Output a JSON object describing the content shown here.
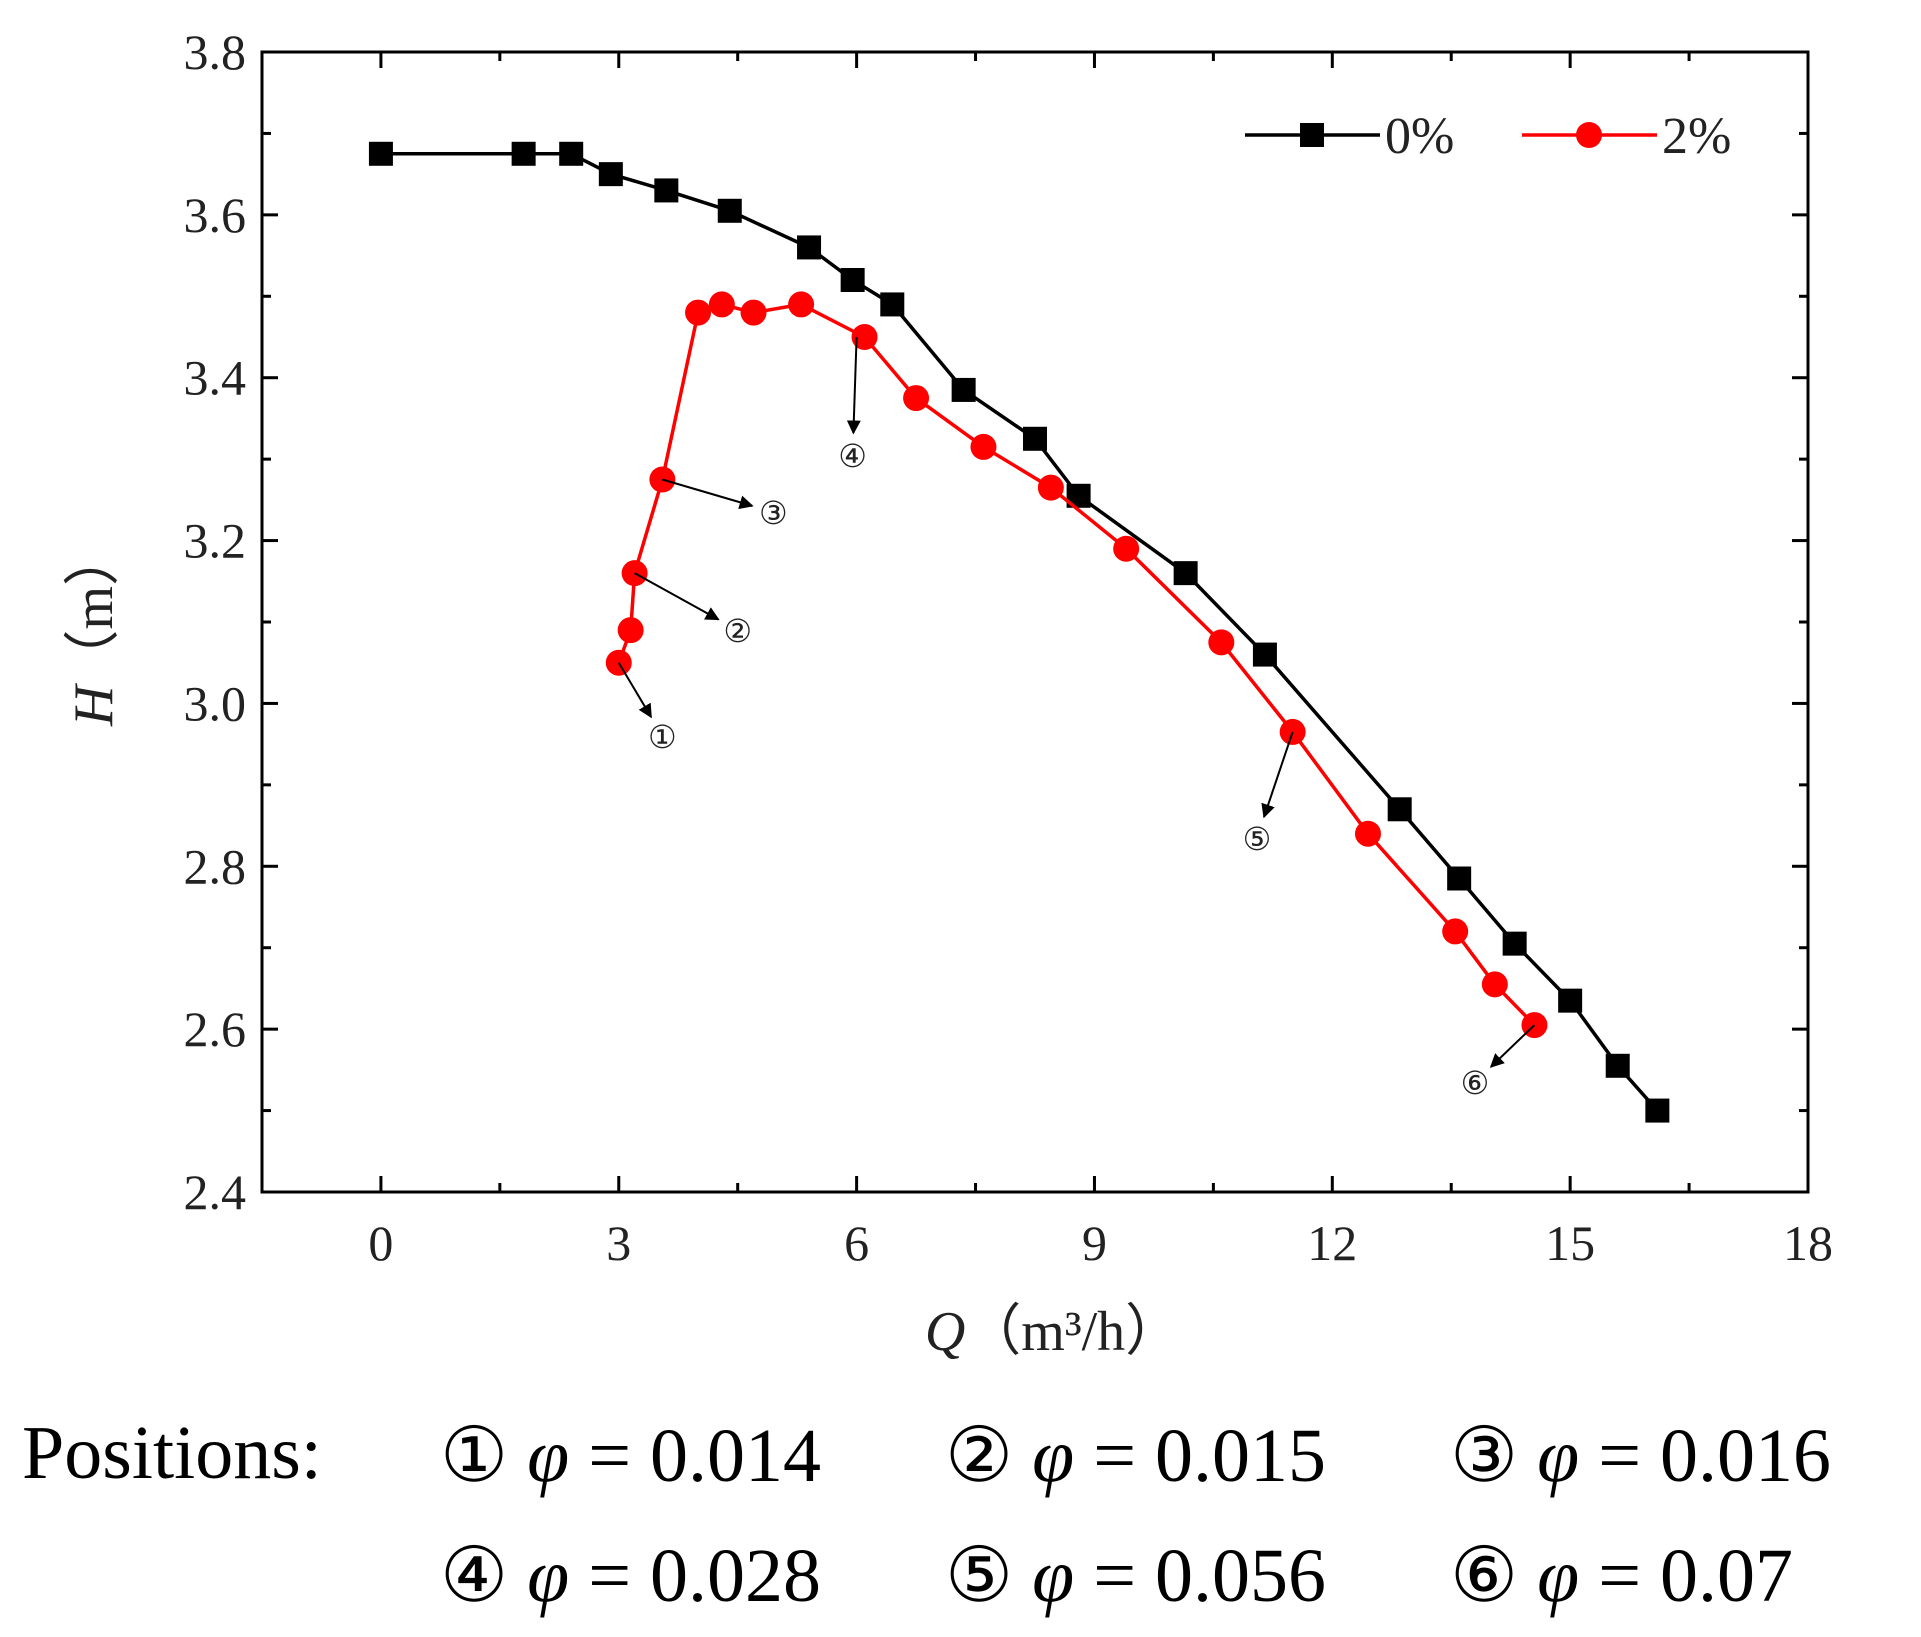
{
  "chart_data": {
    "type": "line",
    "xlabel_var": "Q",
    "xlabel_unit": "（m³/h）",
    "ylabel_var": "H",
    "ylabel_unit": "（m）",
    "xlim": [
      -1.5,
      18
    ],
    "ylim": [
      2.4,
      3.8
    ],
    "xticks": [
      "0",
      "3",
      "6",
      "9",
      "12",
      "15",
      "18"
    ],
    "yticks": [
      "2.4",
      "2.6",
      "2.8",
      "3.0",
      "3.2",
      "3.4",
      "3.6",
      "3.8"
    ],
    "legend_position": "top-right",
    "series": [
      {
        "name": "0%",
        "color": "#000000",
        "marker": "square",
        "x": [
          0,
          1.8,
          2.4,
          2.9,
          3.6,
          4.4,
          5.4,
          5.95,
          6.45,
          7.35,
          8.25,
          8.8,
          10.15,
          11.15,
          12.85,
          13.6,
          14.3,
          15.0,
          15.6,
          16.1
        ],
        "y": [
          3.675,
          3.675,
          3.675,
          3.65,
          3.63,
          3.605,
          3.56,
          3.52,
          3.49,
          3.385,
          3.325,
          3.255,
          3.16,
          3.06,
          2.87,
          2.785,
          2.705,
          2.635,
          2.555,
          2.5
        ]
      },
      {
        "name": "2%",
        "color": "#ff0000",
        "marker": "circle",
        "x": [
          3.0,
          3.15,
          3.2,
          3.55,
          4.0,
          4.3,
          4.7,
          5.3,
          6.1,
          6.75,
          7.6,
          8.45,
          9.4,
          10.6,
          11.5,
          12.45,
          13.55,
          14.05,
          14.55
        ],
        "y": [
          3.05,
          3.09,
          3.16,
          3.275,
          3.48,
          3.49,
          3.48,
          3.49,
          3.45,
          3.375,
          3.315,
          3.265,
          3.19,
          3.075,
          2.965,
          2.84,
          2.72,
          2.655,
          2.605
        ]
      }
    ],
    "annotations": [
      {
        "label": "①",
        "point": [
          3.0,
          3.05
        ],
        "text_at": [
          3.55,
          2.96
        ]
      },
      {
        "label": "②",
        "point": [
          3.2,
          3.16
        ],
        "text_at": [
          4.5,
          3.09
        ]
      },
      {
        "label": "③",
        "point": [
          3.55,
          3.275
        ],
        "text_at": [
          4.95,
          3.235
        ]
      },
      {
        "label": "④",
        "point": [
          6.0,
          3.45
        ],
        "text_at": [
          5.95,
          3.305
        ]
      },
      {
        "label": "⑤",
        "point": [
          11.5,
          2.965
        ],
        "text_at": [
          11.05,
          2.835
        ]
      },
      {
        "label": "⑥",
        "point": [
          14.55,
          2.605
        ],
        "text_at": [
          13.8,
          2.535
        ]
      }
    ]
  },
  "caption": {
    "prefix": "Positions:",
    "items": [
      {
        "num": "①",
        "phi": "φ",
        "value": "= 0.014"
      },
      {
        "num": "②",
        "phi": "φ",
        "value": "= 0.015"
      },
      {
        "num": "③",
        "phi": "φ",
        "value": "= 0.016"
      },
      {
        "num": "④",
        "phi": "φ",
        "value": "= 0.028"
      },
      {
        "num": "⑤",
        "phi": "φ",
        "value": "= 0.056"
      },
      {
        "num": "⑥",
        "phi": "φ",
        "value": "= 0.07"
      }
    ]
  }
}
